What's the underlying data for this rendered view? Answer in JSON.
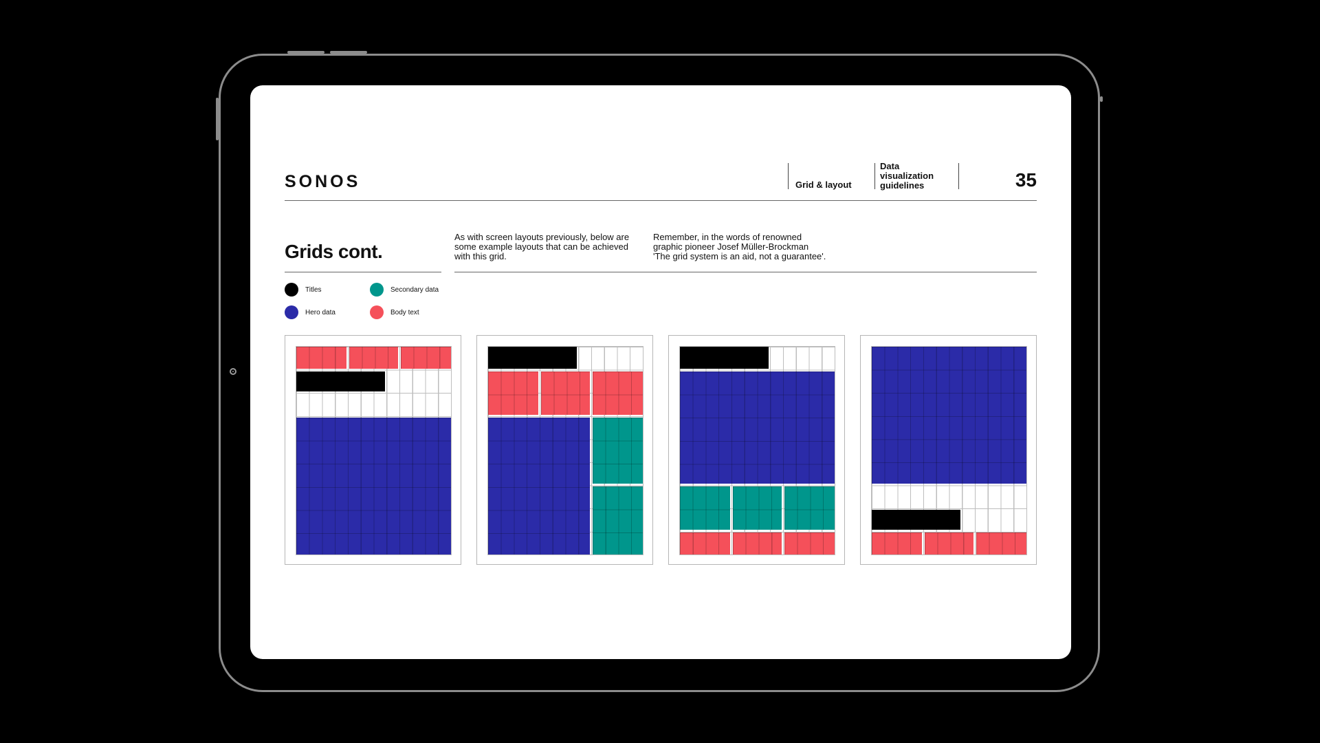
{
  "header": {
    "logo": "SONOS",
    "section": "Grid & layout",
    "doc_title_lines": [
      "Data",
      "visualization",
      "guidelines"
    ],
    "page_number": "35"
  },
  "intro": {
    "title": "Grids cont.",
    "copy_1": [
      "As with screen layouts previously, below are",
      "some example layouts that can be achieved",
      "with this grid."
    ],
    "copy_2": [
      "Remember, in the words of renowned",
      "graphic pioneer Josef Müller-Brockman",
      "'The grid system is an aid, not a guarantee'."
    ]
  },
  "legend": [
    {
      "label": "Titles",
      "color": "#000000"
    },
    {
      "label": "Secondary data",
      "color": "#00968c"
    },
    {
      "label": "Hero data",
      "color": "#2b2ba8"
    },
    {
      "label": "Body text",
      "color": "#f5505a"
    }
  ],
  "colors": {
    "titles": "#000000",
    "hero": "#2b2ba8",
    "secondary": "#00968c",
    "body": "#f5505a"
  },
  "layouts": [
    {
      "name": "layout-1",
      "blocks": [
        {
          "role": "body",
          "col": 0,
          "span": 4,
          "row": 0,
          "rows": 1
        },
        {
          "role": "body",
          "col": 4,
          "span": 4,
          "row": 0,
          "rows": 1
        },
        {
          "role": "body",
          "col": 8,
          "span": 4,
          "row": 0,
          "rows": 1
        },
        {
          "role": "titles",
          "col": 0,
          "span": 7,
          "row": 1,
          "rows": 1
        },
        {
          "role": "hero",
          "col": 0,
          "span": 12,
          "row": 3,
          "rows": 6
        }
      ]
    },
    {
      "name": "layout-2",
      "blocks": [
        {
          "role": "titles",
          "col": 0,
          "span": 7,
          "row": 0,
          "rows": 1
        },
        {
          "role": "body",
          "col": 0,
          "span": 4,
          "row": 1,
          "rows": 2
        },
        {
          "role": "body",
          "col": 4,
          "span": 4,
          "row": 1,
          "rows": 2
        },
        {
          "role": "body",
          "col": 8,
          "span": 4,
          "row": 1,
          "rows": 2
        },
        {
          "role": "hero",
          "col": 0,
          "span": 8,
          "row": 3,
          "rows": 6
        },
        {
          "role": "secondary",
          "col": 8,
          "span": 4,
          "row": 3,
          "rows": 3
        },
        {
          "role": "secondary",
          "col": 8,
          "span": 4,
          "row": 6,
          "rows": 3
        }
      ]
    },
    {
      "name": "layout-3",
      "blocks": [
        {
          "role": "titles",
          "col": 0,
          "span": 7,
          "row": 0,
          "rows": 1
        },
        {
          "role": "hero",
          "col": 0,
          "span": 12,
          "row": 1,
          "rows": 5
        },
        {
          "role": "secondary",
          "col": 0,
          "span": 4,
          "row": 6,
          "rows": 2
        },
        {
          "role": "secondary",
          "col": 4,
          "span": 4,
          "row": 6,
          "rows": 2
        },
        {
          "role": "secondary",
          "col": 8,
          "span": 4,
          "row": 6,
          "rows": 2
        },
        {
          "role": "body",
          "col": 0,
          "span": 4,
          "row": 8,
          "rows": 1
        },
        {
          "role": "body",
          "col": 4,
          "span": 4,
          "row": 8,
          "rows": 1
        },
        {
          "role": "body",
          "col": 8,
          "span": 4,
          "row": 8,
          "rows": 1
        }
      ]
    },
    {
      "name": "layout-4",
      "blocks": [
        {
          "role": "hero",
          "col": 0,
          "span": 12,
          "row": 0,
          "rows": 6
        },
        {
          "role": "titles",
          "col": 0,
          "span": 7,
          "row": 7,
          "rows": 1
        },
        {
          "role": "body",
          "col": 0,
          "span": 4,
          "row": 8,
          "rows": 1
        },
        {
          "role": "body",
          "col": 4,
          "span": 4,
          "row": 8,
          "rows": 1
        },
        {
          "role": "body",
          "col": 8,
          "span": 4,
          "row": 8,
          "rows": 1
        }
      ]
    }
  ]
}
